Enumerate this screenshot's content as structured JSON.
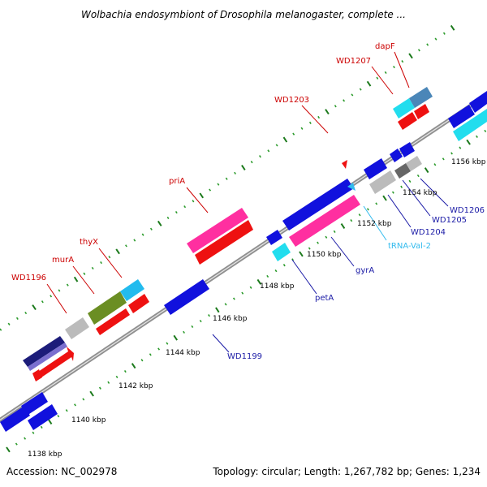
{
  "title": "Wolbachia endosymbiont of Drosophila melanogaster, complete ...",
  "footer": {
    "accession": "Accession: NC_002978",
    "topology": "Topology: circular; Length: 1,267,782 bp; Genes: 1,234"
  },
  "colors": {
    "backbone": "#8c8c8c",
    "tick_major": "#1c7a1c",
    "tick_minor": "#2a9a2a",
    "red_label": "#cc0000",
    "blue_label": "#1a1aa6",
    "cyan_label": "#33bbee"
  },
  "kbp_labels": [
    {
      "value": 1138,
      "text": "1138 kbp"
    },
    {
      "value": 1140,
      "text": "1140 kbp"
    },
    {
      "value": 1142,
      "text": "1142 kbp"
    },
    {
      "value": 1144,
      "text": "1144 kbp"
    },
    {
      "value": 1146,
      "text": "1146 kbp"
    },
    {
      "value": 1148,
      "text": "1148 kbp"
    },
    {
      "value": 1150,
      "text": "1150 kbp"
    },
    {
      "value": 1152,
      "text": "1152 kbp"
    },
    {
      "value": 1154,
      "text": "1154 kbp"
    },
    {
      "value": 1156,
      "text": "1156 kbp"
    }
  ],
  "gene_labels": {
    "WD1196": "WD1196",
    "murA": "murA",
    "thyX": "thyX",
    "priA": "priA",
    "WD1203": "WD1203",
    "WD1207": "WD1207",
    "dapF": "dapF",
    "WD1199": "WD1199",
    "petA": "petA",
    "gyrA": "gyrA",
    "tRNA-Val-2": "tRNA-Val-2",
    "WD1204": "WD1204",
    "WD1205": "WD1205",
    "WD1206": "WD1206"
  }
}
